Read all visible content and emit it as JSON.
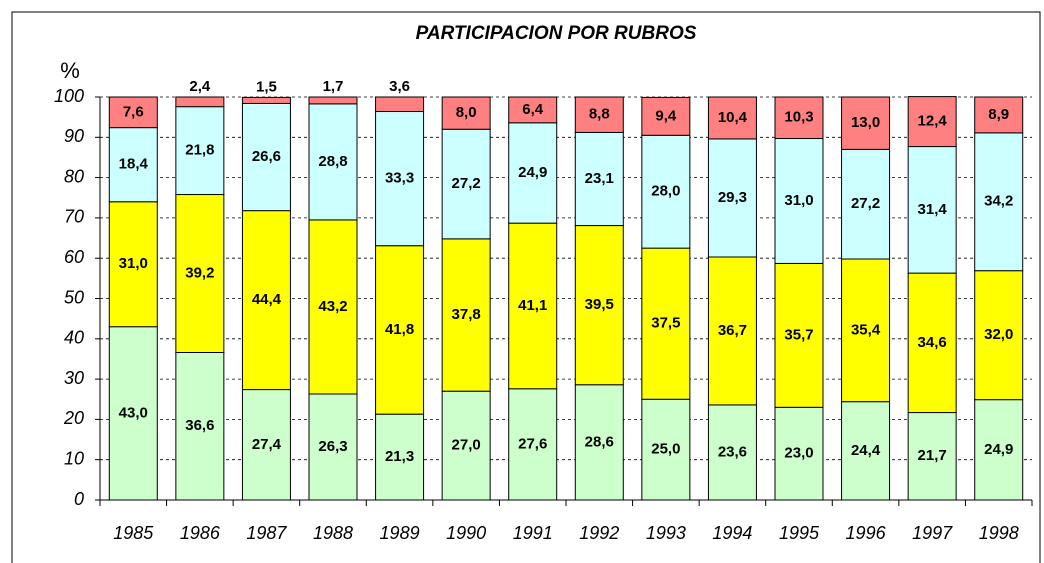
{
  "chart_data": {
    "type": "stacked_bar",
    "title": "PARTICIPACION POR RUBROS",
    "y_label": "%",
    "categories": [
      "1985",
      "1986",
      "1987",
      "1988",
      "1989",
      "1990",
      "1991",
      "1992",
      "1993",
      "1994",
      "1995",
      "1996",
      "1997",
      "1998"
    ],
    "series": [
      {
        "color": "#ccffcc",
        "values": [
          43.0,
          36.6,
          27.4,
          26.3,
          21.3,
          27.0,
          27.6,
          28.6,
          25.0,
          23.6,
          23.0,
          24.4,
          21.7,
          24.9
        ],
        "value_labels": [
          "43,0",
          "36,6",
          "27,4",
          "26,3",
          "21,3",
          "27,0",
          "27,6",
          "28,6",
          "25,0",
          "23,6",
          "23,0",
          "24,4",
          "21,7",
          "24,9"
        ]
      },
      {
        "color": "#ffff00",
        "values": [
          31.0,
          39.2,
          44.4,
          43.2,
          41.8,
          37.8,
          41.1,
          39.5,
          37.5,
          36.7,
          35.7,
          35.4,
          34.6,
          32.0
        ],
        "value_labels": [
          "31,0",
          "39,2",
          "44,4",
          "43,2",
          "41,8",
          "37,8",
          "41,1",
          "39,5",
          "37,5",
          "36,7",
          "35,7",
          "35,4",
          "34,6",
          "32,0"
        ]
      },
      {
        "color": "#ccffff",
        "values": [
          18.4,
          21.8,
          26.6,
          28.8,
          33.3,
          27.2,
          24.9,
          23.1,
          28.0,
          29.3,
          31.0,
          27.2,
          31.4,
          34.2
        ],
        "value_labels": [
          "18,4",
          "21,8",
          "26,6",
          "28,8",
          "33,3",
          "27,2",
          "24,9",
          "23,1",
          "28,0",
          "29,3",
          "31,0",
          "27,2",
          "31,4",
          "34,2"
        ]
      },
      {
        "color": "#ff8080",
        "values": [
          7.6,
          2.4,
          1.5,
          1.7,
          3.6,
          8.0,
          6.4,
          8.8,
          9.4,
          10.4,
          10.3,
          13.0,
          12.4,
          8.9
        ],
        "value_labels": [
          "7,6",
          "2,4",
          "1,5",
          "1,7",
          "3,6",
          "8,0",
          "6,4",
          "8,8",
          "9,4",
          "10,4",
          "10,3",
          "13,0",
          "12,4",
          "8,9"
        ]
      }
    ],
    "ylim": [
      0,
      100
    ],
    "yticks": [
      0,
      10,
      20,
      30,
      40,
      50,
      60,
      70,
      80,
      90,
      100
    ],
    "grid": true
  }
}
